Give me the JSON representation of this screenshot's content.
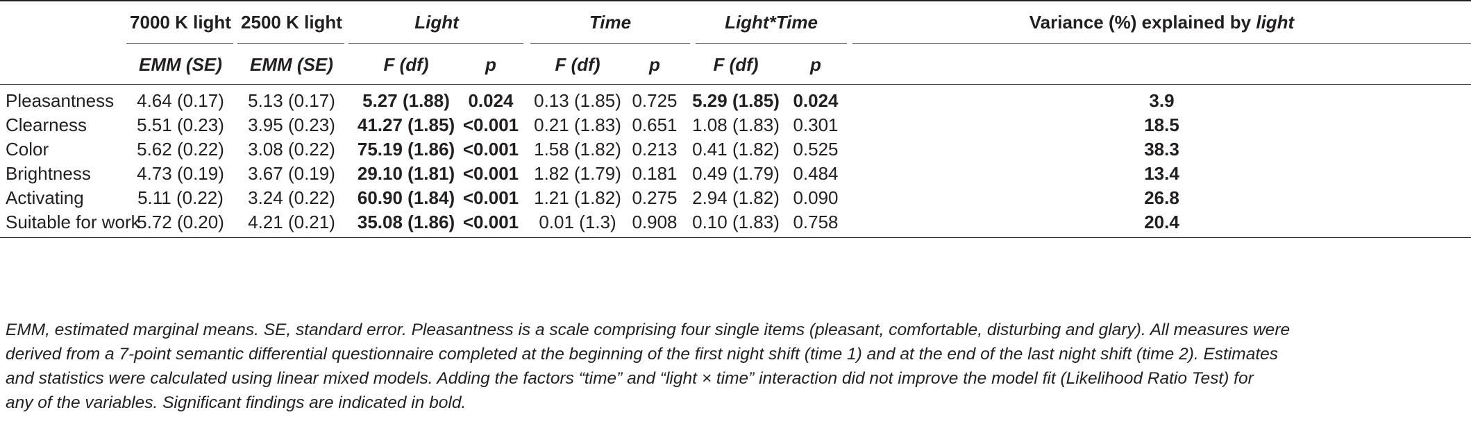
{
  "table": {
    "group_headers": [
      "7000 K light",
      "2500 K light",
      "Light",
      "Time",
      "Light*Time"
    ],
    "variance_header": {
      "text": "Variance (%) explained by ",
      "emph": "light"
    },
    "sub_headers": [
      "EMM (SE)",
      "EMM (SE)",
      "F (df)",
      "p",
      "F (df)",
      "p",
      "F (df)",
      "p"
    ],
    "rows": [
      {
        "label": "Pleasantness",
        "c7000": "4.64 (0.17)",
        "c2500": "5.13 (0.17)",
        "light_f": "5.27 (1.88)",
        "light_p": "0.024",
        "time_f": "0.13 (1.85)",
        "time_p": "0.725",
        "lt_f": "5.29 (1.85)",
        "lt_p": "0.024",
        "variance": "3.9"
      },
      {
        "label": "Clearness",
        "c7000": "5.51 (0.23)",
        "c2500": "3.95 (0.23)",
        "light_f": "41.27 (1.85)",
        "light_p": "<0.001",
        "time_f": "0.21 (1.83)",
        "time_p": "0.651",
        "lt_f": "1.08 (1.83)",
        "lt_p": "0.301",
        "variance": "18.5"
      },
      {
        "label": "Color",
        "c7000": "5.62 (0.22)",
        "c2500": "3.08 (0.22)",
        "light_f": "75.19 (1.86)",
        "light_p": "<0.001",
        "time_f": "1.58 (1.82)",
        "time_p": "0.213",
        "lt_f": "0.41 (1.82)",
        "lt_p": "0.525",
        "variance": "38.3"
      },
      {
        "label": "Brightness",
        "c7000": "4.73 (0.19)",
        "c2500": "3.67 (0.19)",
        "light_f": "29.10 (1.81)",
        "light_p": "<0.001",
        "time_f": "1.82 (1.79)",
        "time_p": "0.181",
        "lt_f": "0.49 (1.79)",
        "lt_p": "0.484",
        "variance": "13.4"
      },
      {
        "label": "Activating",
        "c7000": "5.11 (0.22)",
        "c2500": "3.24 (0.22)",
        "light_f": "60.90 (1.84)",
        "light_p": "<0.001",
        "time_f": "1.21 (1.82)",
        "time_p": "0.275",
        "lt_f": "2.94 (1.82)",
        "lt_p": "0.090",
        "variance": "26.8"
      },
      {
        "label": "Suitable for work",
        "c7000": "5.72 (0.20)",
        "c2500": "4.21 (0.21)",
        "light_f": "35.08 (1.86)",
        "light_p": "<0.001",
        "time_f": "0.01 (1.3)",
        "time_p": "0.908",
        "lt_f": "0.10 (1.83)",
        "lt_p": "0.758",
        "variance": "20.4"
      }
    ]
  },
  "footnote": {
    "parts": [
      "EMM, estimated marginal means. SE, standard error. Pleasantness is a scale comprising four single items (pleasant, comfortable, disturbing and glary). All measures were",
      "derived from a 7-point semantic differential questionnaire completed at the beginning of the first night shift (time 1) and at the end of the last night shift (time 2). Estimates",
      "and statistics were calculated using linear mixed models. Adding the factors “time” and “light × time” interaction did not improve the model fit (Likelihood Ratio Test) for",
      "any of the variables. Significant findings are indicated in bold."
    ]
  }
}
